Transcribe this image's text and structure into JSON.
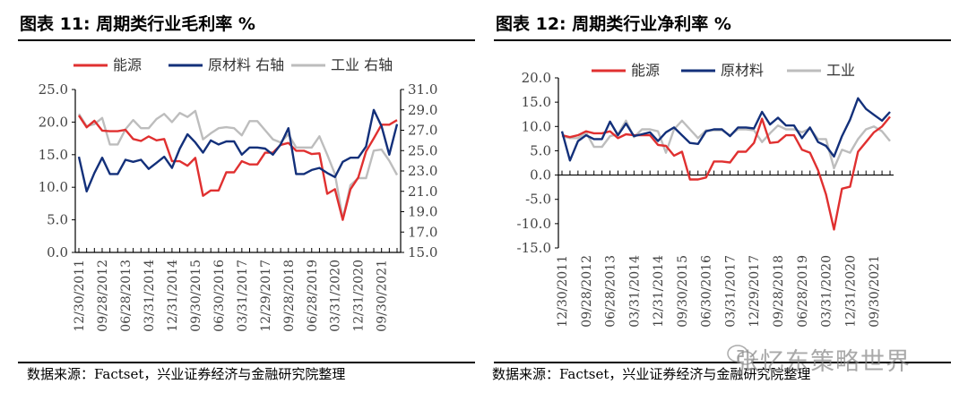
{
  "chart_data": [
    {
      "type": "line",
      "title": "图表 11:  周期类行业毛利率  %",
      "source": "数据来源：Factset，兴业证券经济与金融研究院整理",
      "x_tick_labels": [
        "12/30/2011",
        "09/28/2012",
        "06/28/2013",
        "03/31/2014",
        "12/31/2014",
        "09/30/2015",
        "06/30/2016",
        "03/31/2017",
        "12/29/2017",
        "09/28/2018",
        "06/28/2019",
        "03/31/2020",
        "12/31/2020",
        "09/30/2021"
      ],
      "x_tick_every": 3,
      "ylim_left": [
        0,
        25
      ],
      "yticks_left": [
        "0.0",
        "5.0",
        "10.0",
        "15.0",
        "20.0",
        "25.0"
      ],
      "ylim_right": [
        15,
        31
      ],
      "yticks_right": [
        "15.0",
        "17.0",
        "19.0",
        "21.0",
        "23.0",
        "25.0",
        "27.0",
        "29.0",
        "31.0"
      ],
      "series": [
        {
          "name": "能源",
          "axis": "left",
          "color": "#e03030",
          "values": [
            21.0,
            19.2,
            20.2,
            18.7,
            18.6,
            18.6,
            18.8,
            17.4,
            17.1,
            17.8,
            17.2,
            17.4,
            14.0,
            14.0,
            13.3,
            14.5,
            8.7,
            9.5,
            9.5,
            12.3,
            12.3,
            14.0,
            13.5,
            13.5,
            15.3,
            15.3,
            16.5,
            16.8,
            15.6,
            15.6,
            15.1,
            15.2,
            9.0,
            9.7,
            5.0,
            9.7,
            11.5,
            15.5,
            17.5,
            19.6,
            19.6,
            20.3
          ]
        },
        {
          "name": "原材料 右轴",
          "axis": "right",
          "color": "#13307a",
          "values": [
            24.4,
            21.0,
            22.8,
            24.3,
            22.7,
            22.7,
            24.1,
            23.9,
            24.1,
            23.2,
            23.8,
            24.4,
            23.3,
            25.2,
            26.6,
            25.8,
            24.8,
            26.0,
            25.6,
            25.9,
            25.9,
            24.6,
            25.3,
            25.3,
            25.2,
            24.6,
            25.6,
            27.2,
            22.7,
            22.7,
            23.1,
            23.3,
            22.8,
            22.4,
            23.9,
            24.3,
            24.3,
            25.4,
            29.0,
            27.4,
            24.6,
            27.6
          ]
        },
        {
          "name": "工业 右轴",
          "axis": "right",
          "color": "#bdbdbd",
          "values": [
            28.6,
            27.4,
            27.6,
            28.2,
            25.6,
            25.6,
            27.1,
            28.0,
            27.2,
            27.2,
            28.1,
            28.6,
            27.8,
            28.7,
            28.3,
            28.9,
            26.1,
            26.7,
            27.2,
            27.3,
            27.2,
            26.5,
            27.9,
            27.9,
            27.0,
            26.1,
            25.8,
            26.6,
            25.3,
            25.3,
            25.3,
            26.4,
            24.6,
            22.7,
            18.3,
            21.6,
            22.3,
            22.3,
            25.0,
            25.1,
            24.0,
            22.6
          ]
        }
      ]
    },
    {
      "type": "line",
      "title": "图表 12:  周期类行业净利率  %",
      "source": "数据来源：Factset，兴业证券经济与金融研究院整理",
      "x_tick_labels": [
        "12/30/2011",
        "09/28/2012",
        "06/28/2013",
        "03/31/2014",
        "12/31/2014",
        "09/30/2015",
        "06/30/2016",
        "03/31/2017",
        "12/29/2017",
        "09/28/2018",
        "06/28/2019",
        "03/31/2020",
        "12/31/2020",
        "09/30/2021"
      ],
      "x_tick_every": 3,
      "ylim_left": [
        -15,
        20
      ],
      "yticks_left": [
        "-15.0",
        "-10.0",
        "-5.0",
        "0.0",
        "5.0",
        "10.0",
        "15.0",
        "20.0"
      ],
      "series": [
        {
          "name": "能源",
          "axis": "left",
          "color": "#e03030",
          "values": [
            8.2,
            7.8,
            8.2,
            9.0,
            8.6,
            8.6,
            9.0,
            7.6,
            8.4,
            8.2,
            8.2,
            8.2,
            6.2,
            6.0,
            4.0,
            4.8,
            -0.9,
            -0.9,
            -0.5,
            2.8,
            2.8,
            2.6,
            4.8,
            4.8,
            6.6,
            11.6,
            6.6,
            6.8,
            8.2,
            8.2,
            5.2,
            4.6,
            1.0,
            -4.0,
            -11.2,
            -2.8,
            -2.4,
            4.8,
            6.8,
            8.8,
            10.0,
            12.0
          ]
        },
        {
          "name": "原材料",
          "axis": "left",
          "color": "#13307a",
          "values": [
            9.0,
            3.0,
            7.0,
            8.2,
            7.4,
            7.4,
            11.0,
            8.2,
            10.6,
            8.0,
            8.4,
            8.8,
            7.0,
            8.8,
            9.8,
            8.2,
            6.6,
            6.4,
            9.0,
            9.4,
            9.4,
            8.0,
            9.8,
            9.8,
            9.6,
            13.0,
            10.4,
            11.8,
            10.2,
            10.2,
            7.6,
            9.8,
            6.8,
            6.0,
            3.8,
            8.0,
            11.4,
            15.8,
            13.6,
            12.4,
            11.2,
            13.0
          ]
        },
        {
          "name": "工业",
          "axis": "left",
          "color": "#bdbdbd",
          "values": [
            8.0,
            7.6,
            7.6,
            8.8,
            5.8,
            5.8,
            8.0,
            8.4,
            11.2,
            7.8,
            9.4,
            9.4,
            9.0,
            4.6,
            9.4,
            11.2,
            9.4,
            7.6,
            9.2,
            9.2,
            9.2,
            8.2,
            9.4,
            9.4,
            9.2,
            6.8,
            8.6,
            10.2,
            9.4,
            9.4,
            8.8,
            9.6,
            7.4,
            7.4,
            1.4,
            5.2,
            4.6,
            7.4,
            9.4,
            10.0,
            9.0,
            7.0
          ]
        }
      ]
    }
  ],
  "watermark": "张忆东策略世界"
}
